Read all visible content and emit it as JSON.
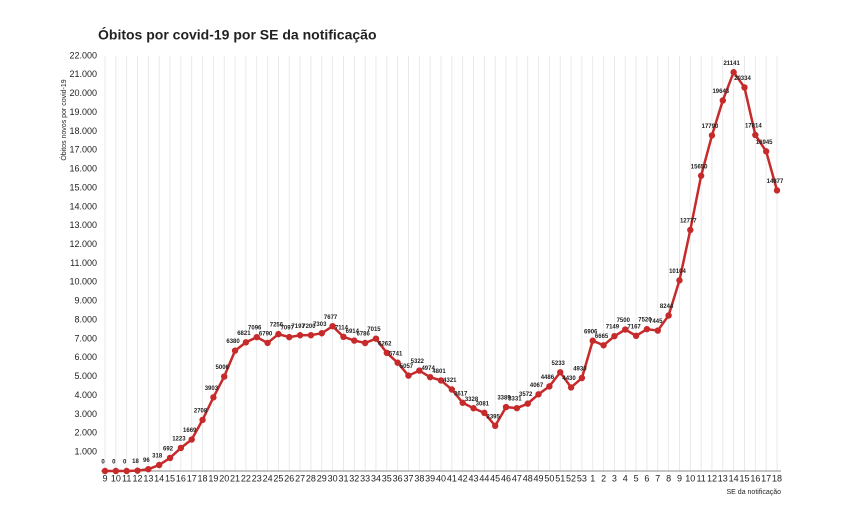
{
  "chart_data": {
    "type": "line",
    "title": "Óbitos por covid-19 por SE da notificação",
    "y_label": "Óbitos novos por covid-19",
    "x_label": "SE da notificação",
    "categories": [
      9,
      10,
      11,
      12,
      13,
      14,
      15,
      16,
      17,
      18,
      19,
      20,
      21,
      22,
      23,
      24,
      25,
      26,
      27,
      28,
      29,
      30,
      31,
      32,
      33,
      34,
      35,
      36,
      37,
      38,
      39,
      40,
      41,
      42,
      43,
      44,
      45,
      46,
      47,
      48,
      49,
      50,
      51,
      52,
      53,
      1,
      2,
      3,
      4,
      5,
      6,
      7,
      8,
      9,
      10,
      11,
      12,
      13,
      14,
      15,
      16,
      17,
      18
    ],
    "series": [
      {
        "name": "Óbitos",
        "color": "#c62a2a",
        "values": [
          0,
          0,
          0,
          18,
          96,
          318,
          692,
          1223,
          1669,
          2708,
          3903,
          5006,
          6380,
          6821,
          7096,
          6790,
          7256,
          7097,
          7197,
          7200,
          7303,
          7677,
          7114,
          6914,
          6786,
          7015,
          6262,
          5741,
          5057,
          5322,
          4974,
          4801,
          4321,
          3617,
          3328,
          3081,
          2395,
          3389,
          3331,
          3572,
          4067,
          4486,
          5233,
          4430,
          4930,
          6906,
          6665,
          7149,
          7500,
          7167,
          7520,
          7445,
          8244,
          10104,
          12777,
          15650,
          17790,
          19643,
          21141,
          20334,
          17814,
          16945,
          14877
        ]
      }
    ],
    "ylim": [
      0,
      22000
    ],
    "yticks": [
      {
        "value": 1000,
        "label": "1.000"
      },
      {
        "value": 2000,
        "label": "2.000"
      },
      {
        "value": 3000,
        "label": "3.000"
      },
      {
        "value": 4000,
        "label": "4.000"
      },
      {
        "value": 5000,
        "label": "5.000"
      },
      {
        "value": 6000,
        "label": "6.000"
      },
      {
        "value": 7000,
        "label": "7.000"
      },
      {
        "value": 8000,
        "label": "8.000"
      },
      {
        "value": 9000,
        "label": "9.000"
      },
      {
        "value": 10000,
        "label": "10.000"
      },
      {
        "value": 11000,
        "label": "11.000"
      },
      {
        "value": 12000,
        "label": "12.000"
      },
      {
        "value": 13000,
        "label": "13.000"
      },
      {
        "value": 14000,
        "label": "14.000"
      },
      {
        "value": 15000,
        "label": "15.000"
      },
      {
        "value": 16000,
        "label": "16.000"
      },
      {
        "value": 17000,
        "label": "17.000"
      },
      {
        "value": 18000,
        "label": "18.000"
      },
      {
        "value": 19000,
        "label": "19.000"
      },
      {
        "value": 20000,
        "label": "20.000"
      },
      {
        "value": 21000,
        "label": "21.000"
      },
      {
        "value": 22000,
        "label": "22.000"
      }
    ],
    "grid": true
  }
}
